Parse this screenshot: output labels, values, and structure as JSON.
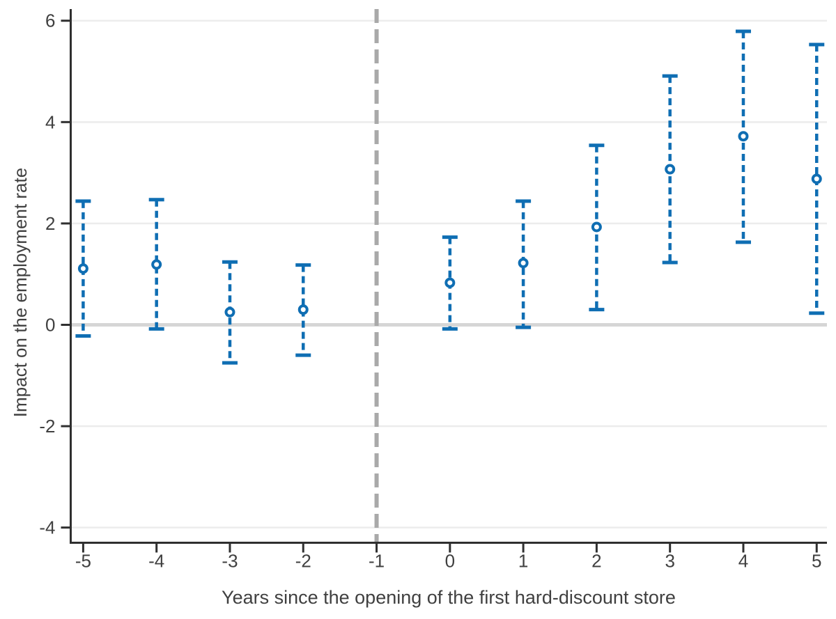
{
  "chart_data": {
    "type": "scatter",
    "subtype": "event-study-errorbar",
    "title": "",
    "xlabel": "Years since the opening of the first hard-discount store",
    "ylabel": "Impact on the employment rate",
    "x": [
      -5,
      -4,
      -3,
      -2,
      0,
      1,
      2,
      3,
      4,
      5
    ],
    "series": [
      {
        "name": "Point estimate",
        "values": [
          1.11,
          1.19,
          0.25,
          0.3,
          0.83,
          1.22,
          1.93,
          3.07,
          3.72,
          2.88
        ]
      },
      {
        "name": "95% CI lower",
        "values": [
          -0.22,
          -0.08,
          -0.75,
          -0.6,
          -0.08,
          -0.05,
          0.3,
          1.23,
          1.63,
          0.23
        ]
      },
      {
        "name": "95% CI upper",
        "values": [
          2.44,
          2.47,
          1.24,
          1.18,
          1.73,
          2.44,
          3.54,
          4.91,
          5.79,
          5.53
        ]
      }
    ],
    "omitted_period": -1,
    "reference_line_x": -1,
    "zero_line_y": 0,
    "xticks": [
      -5,
      -4,
      -3,
      -2,
      -1,
      0,
      1,
      2,
      3,
      4,
      5
    ],
    "yticks": [
      -4,
      -2,
      0,
      2,
      4,
      6
    ],
    "xlim": [
      -5.17,
      5.14
    ],
    "ylim": [
      -4.3,
      6.23
    ],
    "grid": "horizontal",
    "legend": "none",
    "colors": {
      "marker": "#0f6eb3",
      "reference_line": "#a9a9a9",
      "zero_line": "#d6d6d6",
      "grid_line": "#ececec",
      "axis": "#2f2f2f",
      "text": "#404040"
    }
  }
}
